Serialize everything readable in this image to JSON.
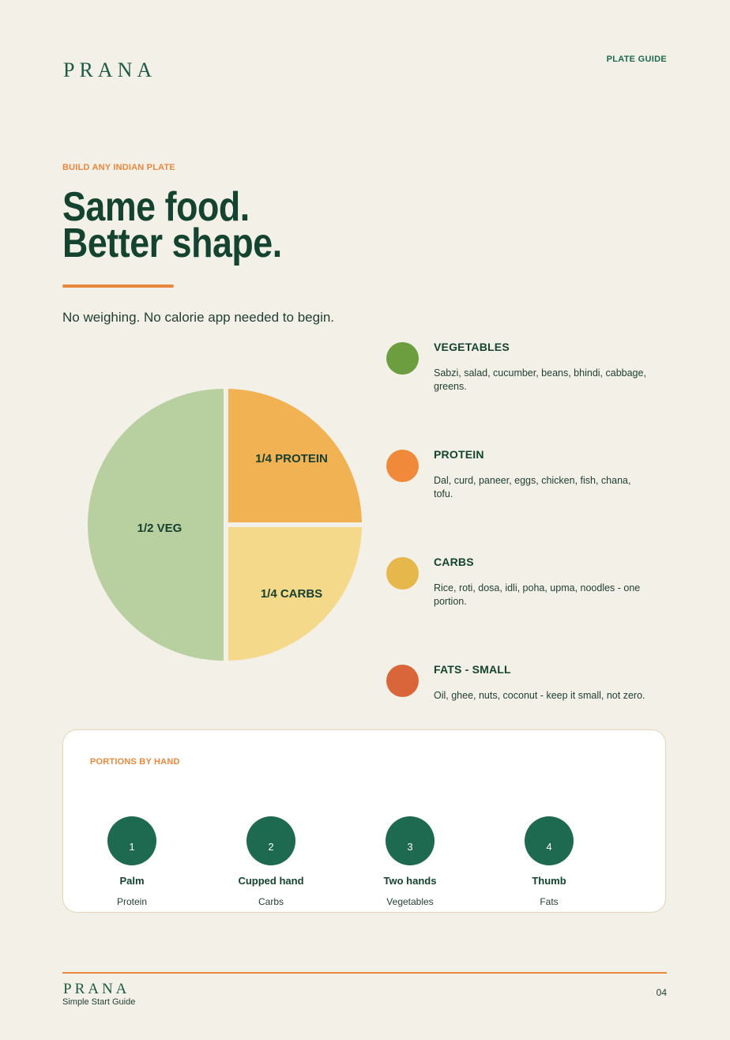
{
  "header": {
    "logo": "PRANA",
    "section_label": "PLATE GUIDE"
  },
  "hero": {
    "eyebrow": "BUILD ANY INDIAN PLATE",
    "headline_line1": "Same food.",
    "headline_line2": "Better shape.",
    "subline": "No weighing. No calorie app needed to begin."
  },
  "plate": {
    "colors": {
      "veg": "#b8d09f",
      "protein": "#f0b252",
      "carbs": "#f5d98a"
    },
    "segments": [
      {
        "label": "1/2 VEG",
        "fraction": 0.5
      },
      {
        "label": "1/4 PROTEIN",
        "fraction": 0.25
      },
      {
        "label": "1/4 CARBS",
        "fraction": 0.25
      }
    ]
  },
  "legend": [
    {
      "title": "VEGETABLES",
      "desc": "Sabzi, salad, cucumber, beans, bhindi, cabbage, greens.",
      "color": "#6c9e40"
    },
    {
      "title": "PROTEIN",
      "desc": "Dal, curd, paneer, eggs, chicken, fish, chana, tofu.",
      "color": "#f08a3a"
    },
    {
      "title": "CARBS",
      "desc": "Rice, roti, dosa, idli, poha, upma, noodles - one portion.",
      "color": "#e6b84c"
    },
    {
      "title": "FATS - SMALL",
      "desc": "Oil, ghee, nuts, coconut - keep it small, not zero.",
      "color": "#d9663b"
    }
  ],
  "portions": {
    "eyebrow": "PORTIONS BY HAND",
    "items": [
      {
        "num": "1",
        "name": "Palm",
        "food": "Protein"
      },
      {
        "num": "2",
        "name": "Cupped hand",
        "food": "Carbs"
      },
      {
        "num": "3",
        "name": "Two hands",
        "food": "Vegetables"
      },
      {
        "num": "4",
        "name": "Thumb",
        "food": "Fats"
      }
    ]
  },
  "footer": {
    "logo": "PRANA",
    "subtitle": "Simple Start Guide",
    "page": "04"
  }
}
